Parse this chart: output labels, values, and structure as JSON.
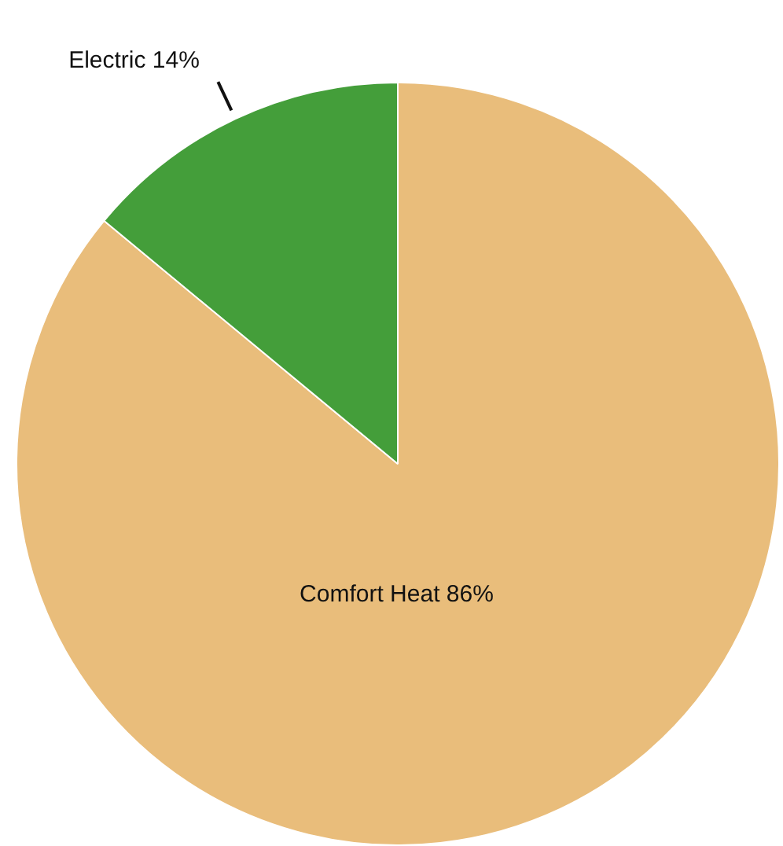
{
  "chart_data": {
    "type": "pie",
    "categories": [
      "Comfort Heat",
      "Electric"
    ],
    "values": [
      86,
      14
    ],
    "colors": [
      "#e9bd7b",
      "#449e3a"
    ],
    "value_labels": [
      "86%",
      "14%"
    ],
    "legend": false
  }
}
